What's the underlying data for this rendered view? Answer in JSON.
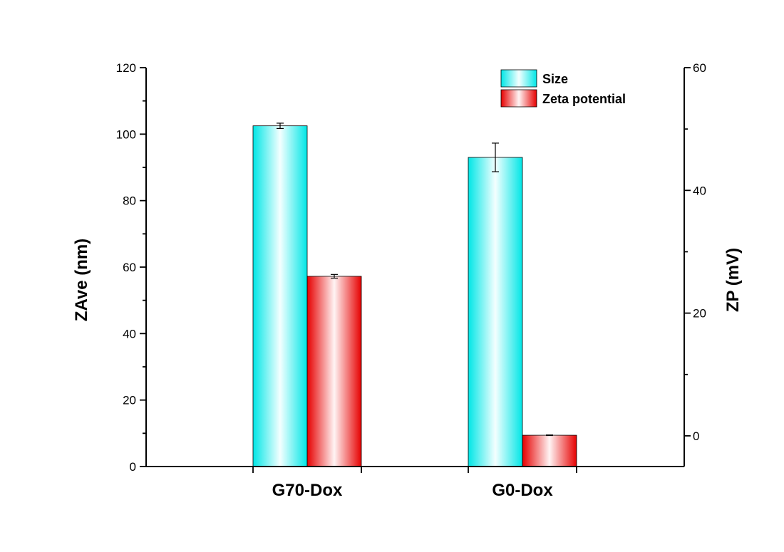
{
  "chart_data": {
    "type": "bar",
    "categories": [
      "G70-Dox",
      "G0-Dox"
    ],
    "y_left": {
      "label": "ZAve (nm)",
      "range": [
        0,
        120
      ],
      "ticks": [
        0,
        20,
        40,
        60,
        80,
        100,
        120
      ]
    },
    "y_right": {
      "label": "ZP (mV)",
      "range": [
        -5,
        60
      ],
      "ticks": [
        0,
        20,
        40,
        60
      ]
    },
    "series": [
      {
        "name": "Size",
        "axis": "left",
        "values": [
          102.5,
          93.0
        ],
        "errors": [
          0.8,
          4.3
        ],
        "color": "#00e5e5"
      },
      {
        "name": "Zeta potential",
        "axis": "right",
        "values": [
          26.0,
          0.1
        ],
        "errors": [
          0.3,
          0.05
        ],
        "color": "#e60000"
      }
    ],
    "legend_position": "top-right",
    "grid": false
  }
}
